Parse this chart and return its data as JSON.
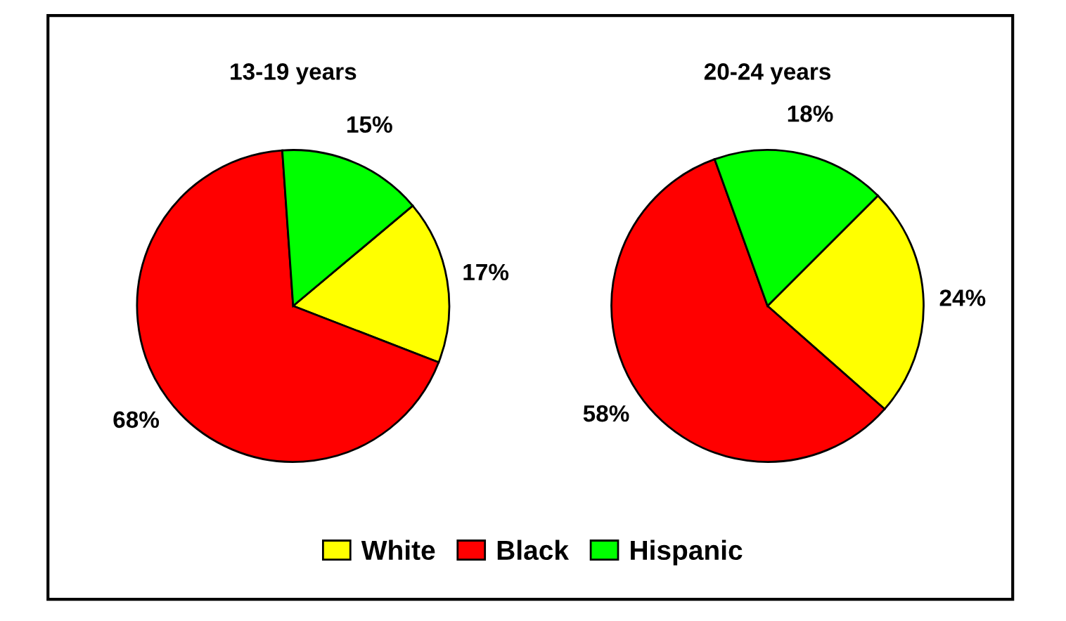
{
  "chart_data": [
    {
      "type": "pie",
      "title": "13-19 years",
      "categories": [
        "White",
        "Black",
        "Hispanic"
      ],
      "values": [
        17,
        68,
        15
      ],
      "colors": [
        "#ffff00",
        "#ff0000",
        "#00ff00"
      ],
      "value_labels": [
        "17%",
        "68%",
        "15%"
      ],
      "legend": "bottom"
    },
    {
      "type": "pie",
      "title": "20-24 years",
      "categories": [
        null,
        null,
        null
      ],
      "values": [
        24,
        58,
        18
      ],
      "colors": [
        "#ffff00",
        "#ff0000",
        "#00ff00"
      ],
      "value_labels": [
        "24%",
        "58%",
        "18%"
      ]
    }
  ]
}
